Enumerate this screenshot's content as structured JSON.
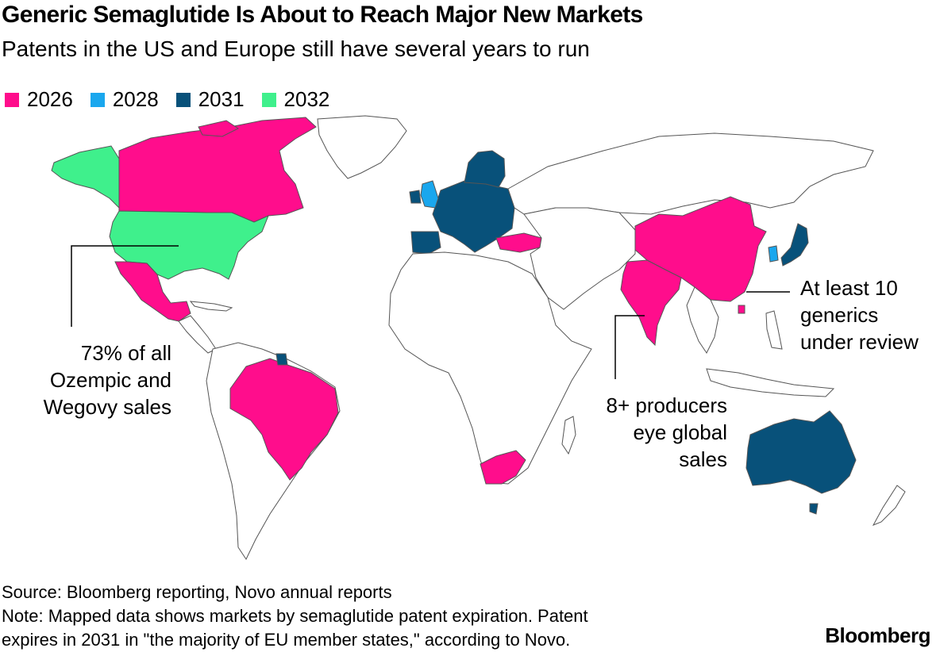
{
  "title": "Generic Semaglutide Is About to Reach Major New Markets",
  "subtitle": "Patents in the US and Europe still have several years to run",
  "legend": [
    {
      "label": "2026",
      "color": "#ff0d8c"
    },
    {
      "label": "2028",
      "color": "#1aa7ee"
    },
    {
      "label": "2031",
      "color": "#08517a"
    },
    {
      "label": "2032",
      "color": "#3ff08c"
    }
  ],
  "annotations": {
    "us": [
      "73% of all",
      "Ozempic and",
      "Wegovy sales"
    ],
    "india": [
      "8+ producers",
      "eye global",
      "sales"
    ],
    "china": [
      "At least 10",
      "generics",
      "under review"
    ]
  },
  "footer": {
    "source": "Source: Bloomberg reporting, Novo annual reports",
    "note_line1": "Note: Mapped data shows markets by semaglutide patent expiration. Patent",
    "note_line2": "expires in 2031 in \"the majority of EU member states,\" according to Novo."
  },
  "brand": "Bloomberg"
}
